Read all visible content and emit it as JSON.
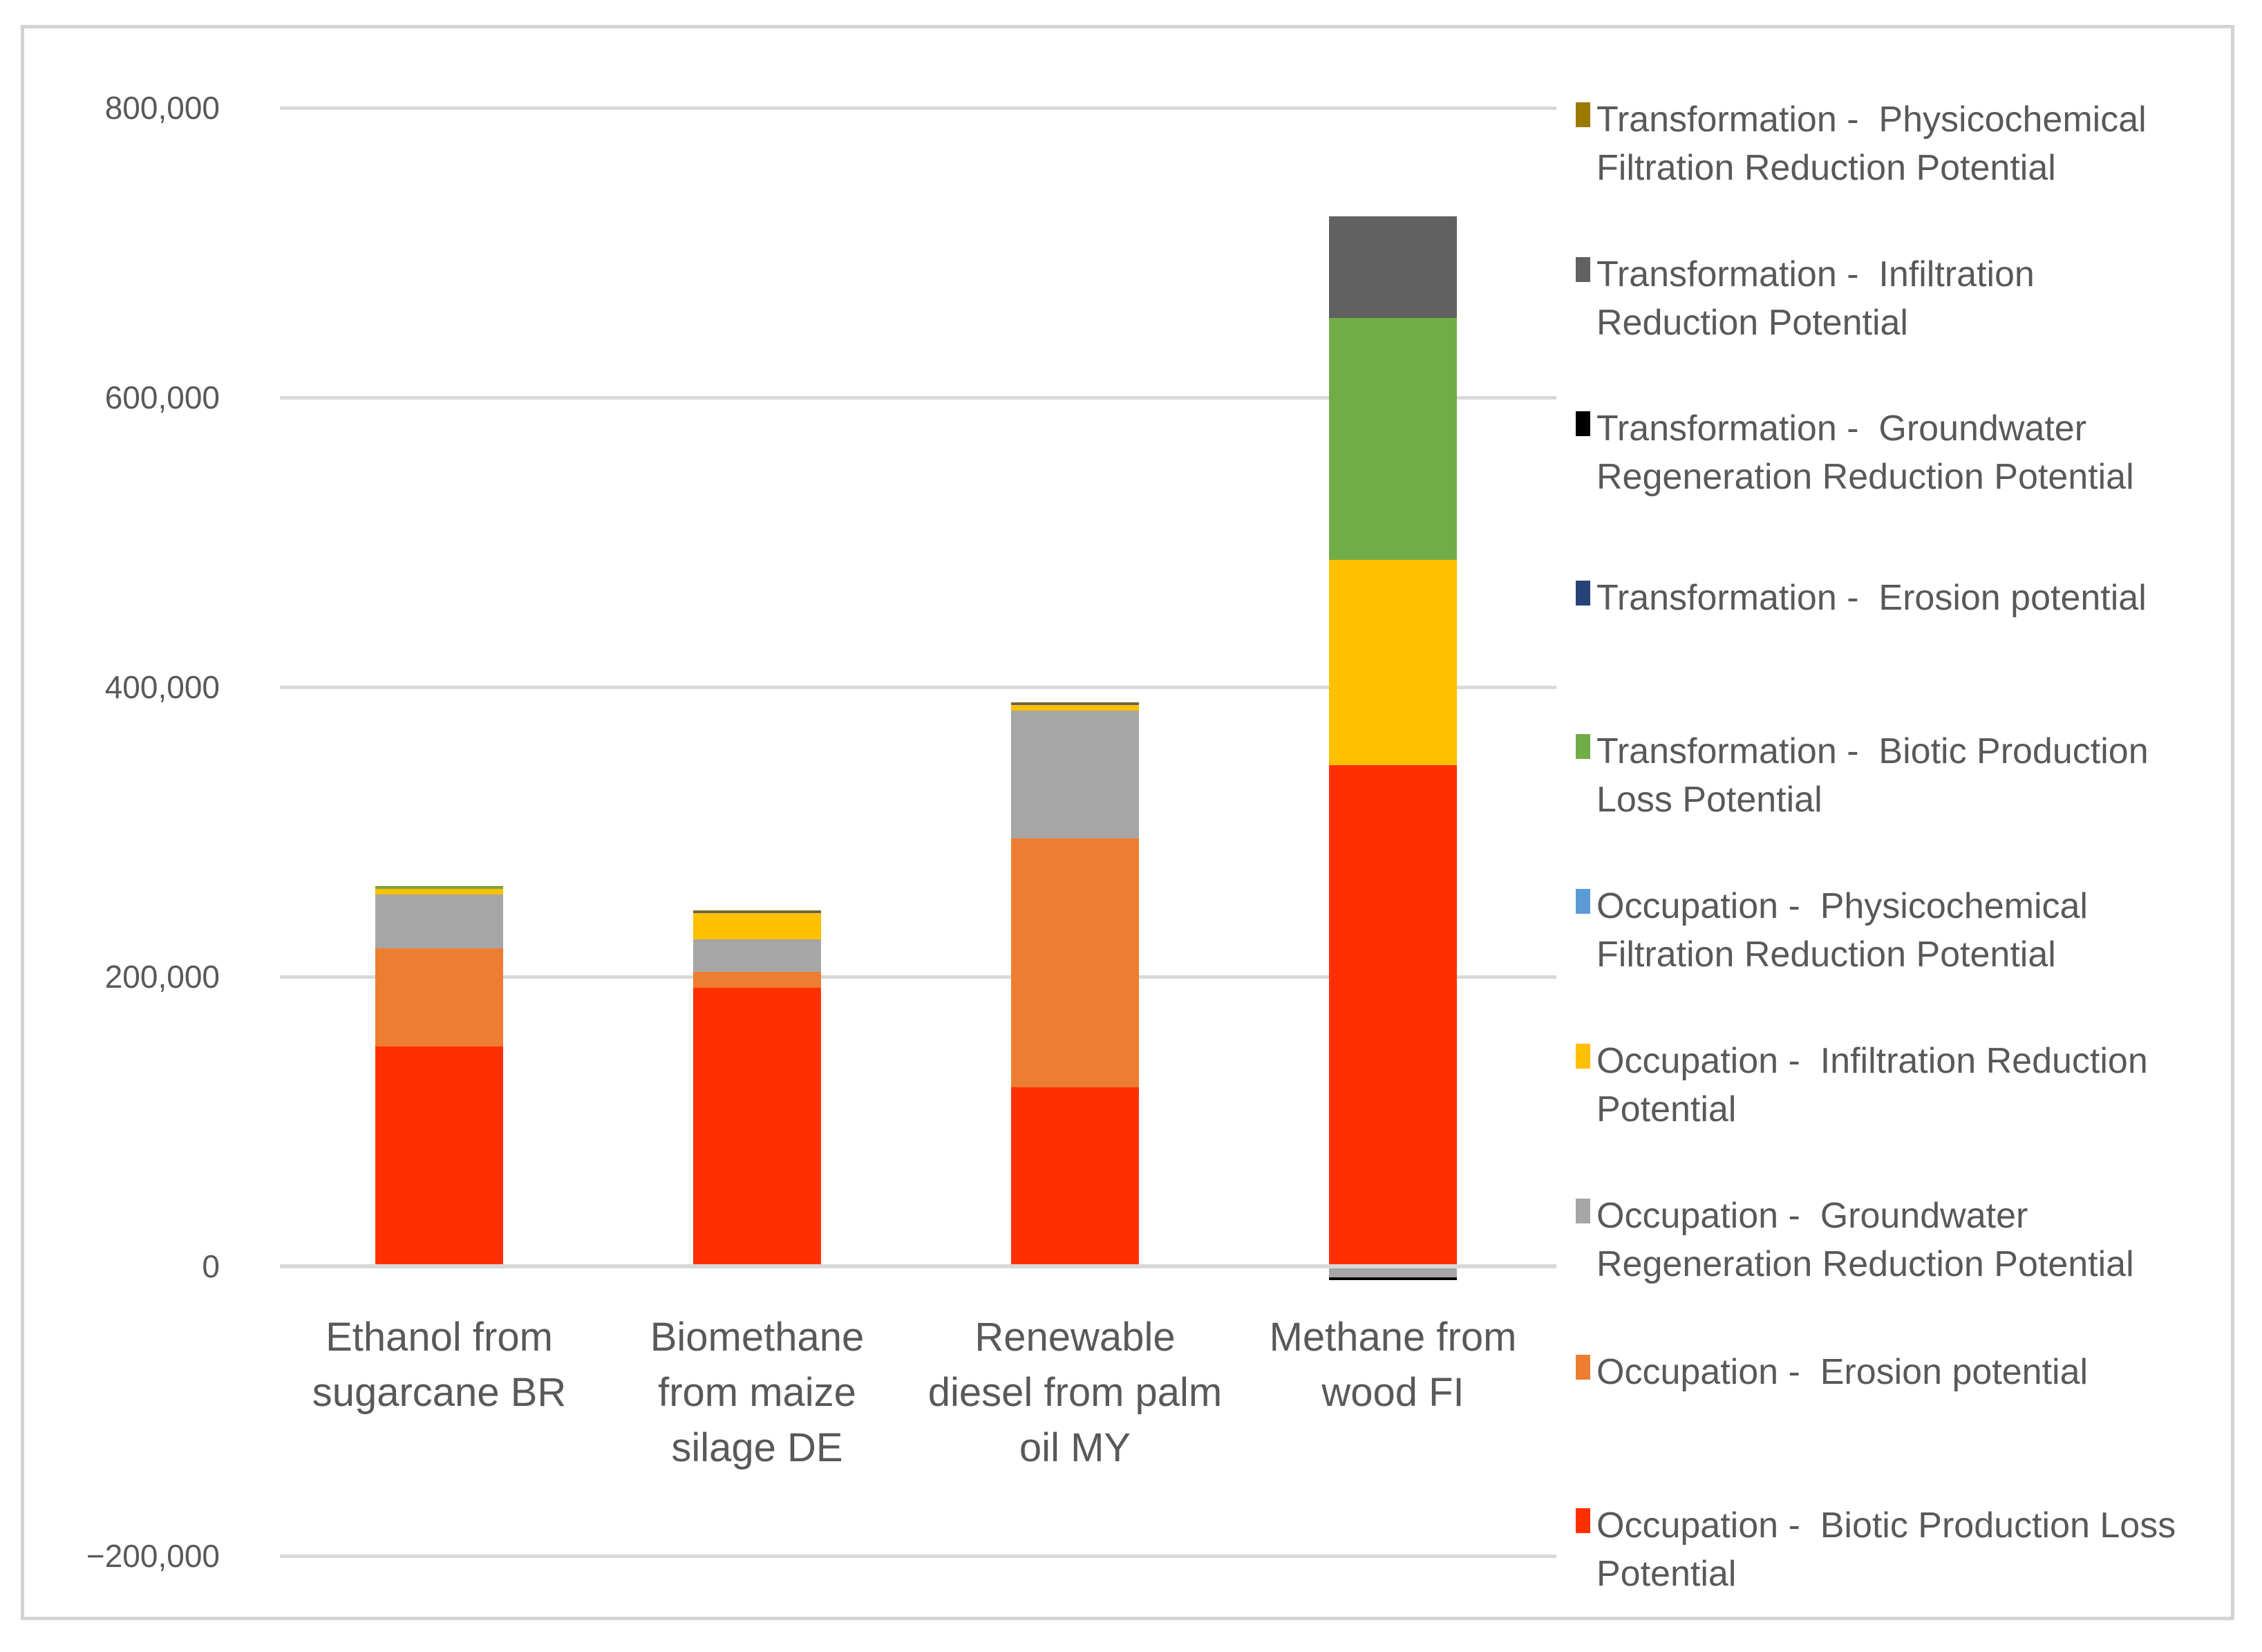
{
  "chart_data": {
    "type": "bar",
    "stacked": true,
    "title": "",
    "xlabel": "",
    "ylabel": "",
    "legend_position": "right",
    "grid": true,
    "categories": [
      "Ethanol from sugarcane BR",
      "Biomethane from maize silage DE",
      "Renewable diesel from palm oil MY",
      "Methane from wood FI"
    ],
    "category_label_lines": [
      [
        "Ethanol from",
        "sugarcane BR"
      ],
      [
        "Biomethane",
        "from maize",
        "silage DE"
      ],
      [
        "Renewable",
        "diesel from palm",
        "oil MY"
      ],
      [
        "Methane from",
        "wood FI"
      ]
    ],
    "y_axis": {
      "min": -200000,
      "max": 800000,
      "tick_interval": 200000,
      "tick_values": [
        800000,
        600000,
        400000,
        200000,
        0,
        -200000
      ],
      "tick_labels": [
        "800,000",
        "600,000",
        "400,000",
        "200,000",
        "0",
        "−200,000"
      ]
    },
    "series": [
      {
        "name": "Occupation -  Biotic Production Loss Potential",
        "legend_lines": [
          "Occupation -  Biotic Production Loss",
          "Potential"
        ],
        "color": "#FF2F00",
        "values": [
          152000,
          192500,
          123500,
          346000
        ]
      },
      {
        "name": "Occupation -  Erosion potential",
        "legend_lines": [
          "Occupation -  Erosion potential"
        ],
        "color": "#ED7D31",
        "values": [
          67500,
          10700,
          172000,
          0
        ]
      },
      {
        "name": "Occupation -  Groundwater Regeneration Reduction Potential",
        "legend_lines": [
          "Occupation -  Groundwater",
          "Regeneration Reduction Potential"
        ],
        "color": "#A6A6A6",
        "values": [
          37500,
          22800,
          88500,
          -7500
        ]
      },
      {
        "name": "Occupation -  Infiltration Reduction Potential",
        "legend_lines": [
          "Occupation -  Infiltration Reduction",
          "Potential"
        ],
        "color": "#FFC000",
        "values": [
          3600,
          17800,
          3700,
          142000
        ]
      },
      {
        "name": "Occupation -  Physicochemical Filtration Reduction Potential",
        "legend_lines": [
          "Occupation -  Physicochemical",
          "Filtration Reduction Potential"
        ],
        "color": "#5B9BD5",
        "values": [
          0,
          0,
          0,
          0
        ]
      },
      {
        "name": "Transformation -  Biotic Production Loss Potential",
        "legend_lines": [
          "Transformation -  Biotic Production",
          "Loss Potential"
        ],
        "color": "#70AD47",
        "values": [
          1300,
          0,
          0,
          167000
        ]
      },
      {
        "name": "Transformation -  Erosion potential",
        "legend_lines": [
          "Transformation -  Erosion potential"
        ],
        "color": "#264478",
        "values": [
          0,
          0,
          0,
          0
        ]
      },
      {
        "name": "Transformation -  Groundwater Regeneration Reduction Potential",
        "legend_lines": [
          "Transformation -  Groundwater",
          "Regeneration Reduction Potential"
        ],
        "color": "#000000",
        "values": [
          0,
          0,
          0,
          -2000
        ]
      },
      {
        "name": "Transformation -  Infiltration Reduction Potential",
        "legend_lines": [
          "Transformation -  Infiltration",
          "Reduction Potential"
        ],
        "color": "#616161",
        "values": [
          0,
          1600,
          1300,
          70000
        ]
      },
      {
        "name": "Transformation -  Physicochemical Filtration Reduction Potential",
        "legend_lines": [
          "Transformation -  Physicochemical",
          "Filtration Reduction Potential"
        ],
        "color": "#9C7A00",
        "values": [
          600,
          400,
          500,
          0
        ]
      }
    ]
  },
  "colors": {
    "grid": "#D9D9D9",
    "axis_text": "#595959",
    "frame_border": "#D3D3D3",
    "background": "#FFFFFF"
  }
}
